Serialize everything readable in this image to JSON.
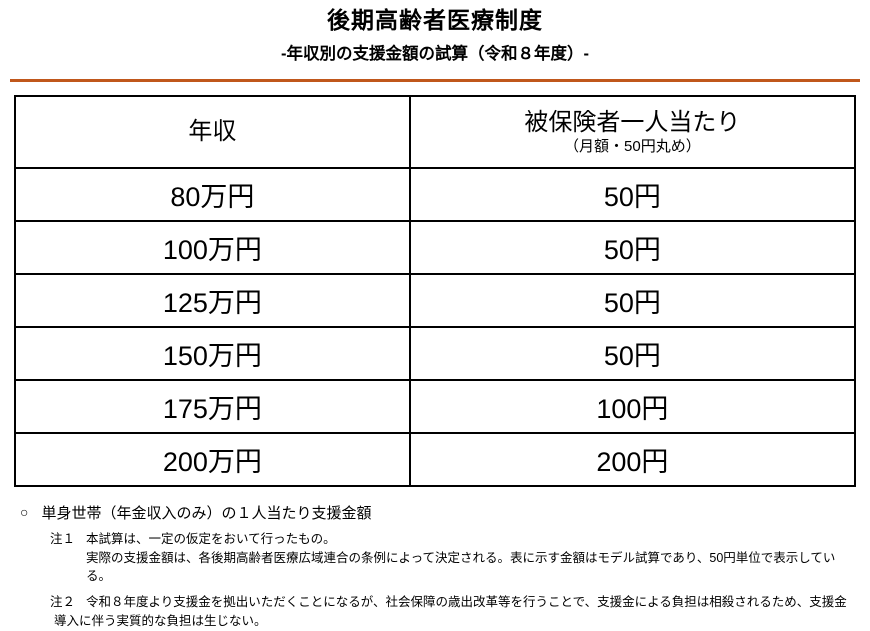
{
  "header": {
    "title": "後期高齢者医療制度",
    "subtitle": "-年収別の支援金額の試算（令和８年度）-"
  },
  "table": {
    "columns": [
      {
        "label": "年収",
        "sublabel": ""
      },
      {
        "label": "被保険者一人当たり",
        "sublabel": "（月額・50円丸め）"
      }
    ],
    "rows": [
      {
        "income": "80万円",
        "amount": "50円"
      },
      {
        "income": "100万円",
        "amount": "50円"
      },
      {
        "income": "125万円",
        "amount": "50円"
      },
      {
        "income": "150万円",
        "amount": "50円"
      },
      {
        "income": "175万円",
        "amount": "100円"
      },
      {
        "income": "200万円",
        "amount": "200円"
      }
    ]
  },
  "notes": {
    "marker": "○",
    "heading": "単身世帯（年金収入のみ）の１人当たり支援金額",
    "items": [
      {
        "label": "注１",
        "lines": [
          "本試算は、一定の仮定をおいて行ったもの。",
          "実際の支援金額は、各後期高齢者医療広域連合の条例によって決定される。表に示す金額はモデル試算であり、50円単位で表示している。"
        ]
      },
      {
        "label": "注２",
        "lines": [
          "令和８年度より支援金を拠出いただくことになるが、社会保障の歳出改革等を行うことで、支援金による負担は相殺されるため、支援金",
          "導入に伴う実質的な負担は生じない。"
        ]
      }
    ]
  },
  "colors": {
    "accent_rule": "#C0571B",
    "table_border": "#000000",
    "background": "#FFFFFF"
  }
}
